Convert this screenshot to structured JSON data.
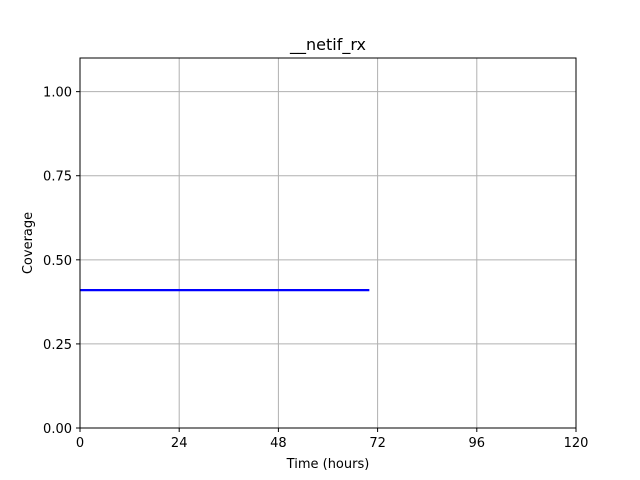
{
  "chart_data": {
    "type": "line",
    "title": "__netif_rx",
    "xlabel": "Time (hours)",
    "ylabel": "Coverage",
    "xlim": [
      0,
      120
    ],
    "ylim": [
      0,
      1.1
    ],
    "x_ticks": [
      0,
      24,
      48,
      72,
      96,
      120
    ],
    "x_tick_labels": [
      "0",
      "24",
      "48",
      "72",
      "96",
      "120"
    ],
    "y_ticks": [
      0,
      0.25,
      0.5,
      0.75,
      1.0
    ],
    "y_tick_labels": [
      "0.00",
      "0.25",
      "0.50",
      "0.75",
      "1.00"
    ],
    "grid": true,
    "series": [
      {
        "color": "#0000ff",
        "x": [
          0,
          70
        ],
        "y": [
          0.41,
          0.41
        ]
      }
    ]
  }
}
